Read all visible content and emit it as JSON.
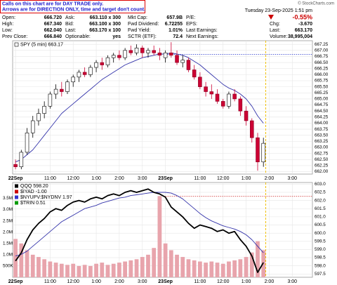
{
  "notice": {
    "lines": [
      "Calls on this chart are for DAY TRADE only.",
      "Arrows are for DIRECTION ONLY, time and target don't count."
    ]
  },
  "brand": "© StockCharts.com",
  "timestamp": "Tuesday 23-Sep-2025 1:51 pm",
  "quote": {
    "col1": [
      {
        "label": "Open:",
        "value": "666.720"
      },
      {
        "label": "High:",
        "value": "667.340"
      },
      {
        "label": "Low:",
        "value": "662.040"
      },
      {
        "label": "Prev Close:",
        "value": "666.840"
      }
    ],
    "col2": [
      {
        "label": "Ask:",
        "value": "663.110 x 300"
      },
      {
        "label": "Bid:",
        "value": "663.100 x 300"
      },
      {
        "label": "Last:",
        "value": "663.170 x 100"
      },
      {
        "label": "Optionable:",
        "value": "yes"
      }
    ],
    "col3": [
      {
        "label": "Mkt Cap:",
        "value": "657.9B"
      },
      {
        "label": "Fwd Dividend:",
        "value": "6.72255"
      },
      {
        "label": "Fwd Yield:",
        "value": "1.01%"
      },
      {
        "label": "SCTR (ETF):",
        "value": "72.4"
      }
    ],
    "col4": [
      "P/E:",
      "EPS:",
      "Last Earnings:",
      "Next Earnings:"
    ],
    "change_pct": "-0.55%",
    "col5": [
      {
        "label": "Chg:",
        "value": "-3.670"
      },
      {
        "label": "Last:",
        "value": "663.170"
      },
      {
        "label": "Volume:",
        "value": "38,995,004"
      }
    ]
  },
  "chart_data": [
    {
      "type": "candlestick",
      "title": "SPY (5 min) 663.17",
      "up_color": "#ffffff",
      "down_color": "#cc0033",
      "xlim": [
        -0.5,
        51.5
      ],
      "xticks": [
        {
          "value": 0,
          "label": "22Sep"
        },
        {
          "value": 6,
          "label": "11:00"
        },
        {
          "value": 10,
          "label": "12:00"
        },
        {
          "value": 14,
          "label": "1:00"
        },
        {
          "value": 18,
          "label": "2:00"
        },
        {
          "value": 22,
          "label": "3:00"
        },
        {
          "value": 26,
          "label": "23Sep"
        },
        {
          "value": 32,
          "label": "11:00"
        },
        {
          "value": 36,
          "label": "12:00"
        },
        {
          "value": 40,
          "label": "1:00"
        },
        {
          "value": 44,
          "label": "2:00"
        },
        {
          "value": 48,
          "label": "3:00"
        }
      ],
      "ylim": [
        661.9,
        667.4
      ],
      "yticks": [
        {
          "value": 662,
          "label": "662.00"
        },
        662.25,
        {
          "value": 662.5,
          "label": "662.50"
        },
        662.75,
        {
          "value": 663,
          "label": "663.00"
        },
        663.25,
        {
          "value": 663.5,
          "label": "663.50"
        },
        663.75,
        {
          "value": 664,
          "label": "664.00"
        },
        664.25,
        {
          "value": 664.5,
          "label": "664.50"
        },
        664.75,
        {
          "value": 665,
          "label": "665.00"
        },
        665.25,
        {
          "value": 665.5,
          "label": "665.50"
        },
        665.75,
        {
          "value": 666,
          "label": "666.00"
        },
        666.25,
        {
          "value": 666.5,
          "label": "666.50"
        },
        666.75,
        {
          "value": 667,
          "label": "667.00"
        },
        667.25
      ],
      "grid": true,
      "open": [
        662.3,
        662.2,
        662.8,
        663.6,
        664.1,
        664.4,
        664.7,
        665.2,
        665.4,
        665.3,
        665.7,
        665.9,
        666.1,
        666.0,
        666.3,
        666.5,
        666.4,
        666.7,
        666.8,
        666.7,
        667.0,
        666.9,
        667.1,
        666.9,
        667.0,
        666.9,
        666.7,
        666.9,
        666.8,
        666.5,
        666.6,
        666.2,
        665.9,
        665.5,
        665.3,
        665.2,
        664.9,
        664.7,
        665.2,
        665.0,
        664.5,
        664.1,
        663.4,
        662.4
      ],
      "high": [
        662.5,
        662.9,
        663.8,
        664.3,
        664.6,
        664.9,
        665.3,
        665.6,
        665.7,
        665.8,
        666.0,
        666.2,
        666.3,
        666.4,
        666.6,
        666.7,
        666.8,
        666.9,
        667.0,
        667.1,
        667.2,
        667.25,
        667.2,
        667.1,
        667.2,
        667.1,
        667.0,
        667.34,
        667.0,
        666.8,
        666.7,
        666.4,
        666.1,
        665.7,
        665.6,
        665.4,
        665.0,
        665.3,
        665.4,
        665.1,
        664.7,
        664.2,
        663.6,
        663.4
      ],
      "low": [
        662.1,
        662.1,
        662.7,
        663.4,
        663.9,
        664.2,
        664.6,
        665.0,
        665.1,
        665.2,
        665.5,
        665.7,
        665.9,
        665.9,
        666.1,
        666.2,
        666.3,
        666.5,
        666.6,
        666.6,
        666.8,
        666.8,
        666.7,
        666.7,
        666.8,
        666.6,
        666.5,
        666.7,
        666.4,
        666.3,
        666.1,
        665.8,
        665.4,
        665.1,
        665.0,
        664.8,
        664.6,
        664.6,
        664.9,
        664.3,
        663.9,
        663.2,
        662.04,
        662.2
      ],
      "close": [
        662.2,
        662.8,
        663.6,
        664.1,
        664.4,
        664.7,
        665.2,
        665.4,
        665.3,
        665.7,
        665.9,
        666.1,
        666.0,
        666.3,
        666.5,
        666.4,
        666.7,
        666.8,
        666.7,
        667.0,
        666.9,
        667.1,
        666.9,
        667.0,
        666.9,
        666.8,
        666.9,
        666.8,
        666.5,
        666.6,
        666.2,
        665.9,
        665.5,
        665.3,
        665.2,
        664.9,
        664.7,
        665.2,
        665.0,
        664.5,
        664.1,
        663.4,
        662.4,
        663.17
      ],
      "ma": {
        "color": "#3333aa",
        "values": [
          662.4,
          662.5,
          662.7,
          662.9,
          663.2,
          663.5,
          663.8,
          664.1,
          664.4,
          664.6,
          664.8,
          665.0,
          665.2,
          665.4,
          665.6,
          665.8,
          665.95,
          666.1,
          666.25,
          666.4,
          666.5,
          666.6,
          666.7,
          666.75,
          666.8,
          666.85,
          666.85,
          666.9,
          666.85,
          666.8,
          666.7,
          666.55,
          666.4,
          666.2,
          666.0,
          665.8,
          665.6,
          665.45,
          665.35,
          665.2,
          665.0,
          664.7,
          664.3,
          664.0
        ]
      },
      "hline": {
        "value": 666.84,
        "start": 26,
        "color": "#2233cc"
      },
      "marker_x": 43.4,
      "marker_color": "#f0c000"
    },
    {
      "type": "line",
      "xlim": [
        -0.5,
        51.5
      ],
      "xticks": [
        {
          "value": 0,
          "label": "22Sep"
        },
        {
          "value": 6,
          "label": "11:00"
        },
        {
          "value": 10,
          "label": "12:00"
        },
        {
          "value": 14,
          "label": "1:00"
        },
        {
          "value": 18,
          "label": "2:00"
        },
        {
          "value": 22,
          "label": "3:00"
        },
        {
          "value": 26,
          "label": "23Sep"
        },
        {
          "value": 32,
          "label": "11:00"
        },
        {
          "value": 36,
          "label": "12:00"
        },
        {
          "value": 40,
          "label": "1:00"
        },
        {
          "value": 44,
          "label": "2:00"
        },
        {
          "value": 48,
          "label": "3:00"
        }
      ],
      "ylim": [
        597.3,
        603.1
      ],
      "yticks": [
        597.5,
        {
          "value": 598,
          "label": "598.0"
        },
        598.5,
        {
          "value": 599,
          "label": "599.0"
        },
        599.5,
        {
          "value": 600,
          "label": "600.0"
        },
        600.5,
        {
          "value": 601,
          "label": "601.0"
        },
        601.5,
        {
          "value": 602,
          "label": "602.0"
        },
        602.5,
        {
          "value": 603,
          "label": "603.0"
        }
      ],
      "grid": true,
      "series": [
        {
          "name": "QQQ 598.20",
          "color": "#000000",
          "values": [
            598.3,
            598.8,
            599.6,
            600.2,
            600.6,
            600.9,
            601.3,
            601.5,
            601.4,
            601.7,
            601.9,
            602.0,
            601.9,
            602.1,
            602.2,
            602.1,
            602.3,
            602.4,
            602.3,
            602.5,
            602.6,
            602.5,
            602.6,
            602.7,
            602.5,
            602.4,
            602.2,
            601.6,
            601.3,
            601.0,
            600.6,
            600.3,
            600.5,
            600.4,
            600.3,
            600.1,
            600.2,
            600.0,
            600.1,
            599.6,
            599.2,
            598.6,
            597.6,
            598.2
          ]
        },
        {
          "color": "#3333aa",
          "values": [
            598.6,
            598.7,
            598.9,
            599.2,
            599.5,
            599.8,
            600.1,
            600.4,
            600.7,
            600.9,
            601.1,
            601.3,
            601.5,
            601.6,
            601.7,
            601.85,
            601.95,
            602.05,
            602.15,
            602.2,
            602.3,
            602.35,
            602.4,
            602.45,
            602.5,
            602.5,
            602.5,
            602.45,
            602.3,
            602.1,
            601.8,
            601.5,
            601.2,
            600.95,
            600.75,
            600.6,
            600.45,
            600.35,
            600.25,
            600.1,
            599.9,
            599.6,
            599.2,
            598.8
          ]
        }
      ],
      "indicators": [
        {
          "name": "$IYAD -1.00",
          "color": "#cc0000"
        },
        {
          "name": "$NYUPV:$NYDNV 1.97",
          "color": "#3333cc"
        },
        {
          "name": "$TRIN 0.51",
          "color": "#009900"
        }
      ],
      "volume": {
        "color": "#e8a4ac",
        "values": [
          1700000,
          1500000,
          1200000,
          1000000,
          900000,
          800000,
          700000,
          650000,
          600000,
          550000,
          600000,
          500000,
          550000,
          500000,
          600000,
          650000,
          550000,
          600000,
          650000,
          700000,
          750000,
          800000,
          900000,
          1000000,
          1300000,
          3600000,
          1500000,
          1200000,
          1000000,
          900000,
          800000,
          750000,
          700000,
          650000,
          700000,
          650000,
          600000,
          700000,
          750000,
          800000,
          900000,
          1100000,
          1600000,
          1200000
        ],
        "ylim": [
          0,
          4200000
        ],
        "yticks": [
          {
            "value": 500000,
            "label": "500K"
          },
          {
            "value": 1000000,
            "label": "1.0M"
          },
          {
            "value": 1500000,
            "label": "1.5M"
          },
          {
            "value": 2000000,
            "label": "2.0M"
          },
          {
            "value": 2500000,
            "label": "2.5M"
          },
          {
            "value": 3000000,
            "label": "3.0M"
          },
          {
            "value": 3500000,
            "label": "3.5M"
          }
        ]
      },
      "hline": {
        "value": 602.25,
        "start": 26,
        "color": "#cc2222"
      },
      "marker_x": 43.4,
      "marker_color": "#f0c000"
    }
  ]
}
